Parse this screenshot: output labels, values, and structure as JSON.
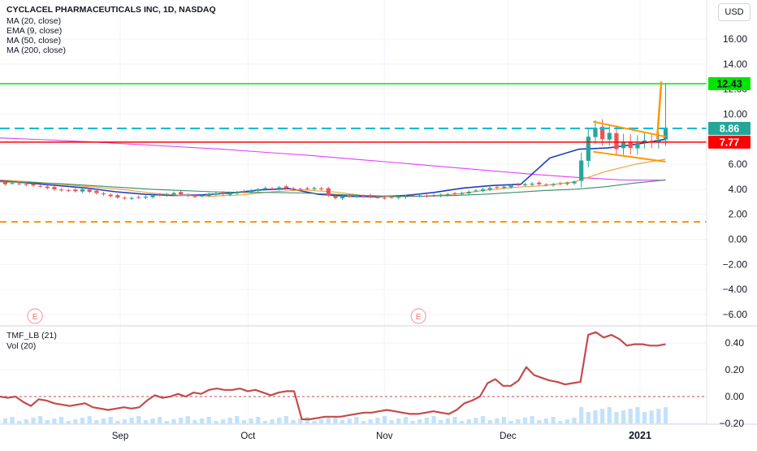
{
  "header": {
    "title": "CYCLACEL PHARMACEUTICALS INC, 1D, NASDAQ",
    "indicators": [
      "MA (20, close)",
      "EMA (9, close)",
      "MA (50, close)",
      "MA (200, close)"
    ],
    "currency_button": "USD"
  },
  "price_axis": {
    "ticks": [
      16,
      14,
      12,
      10,
      8,
      6,
      4,
      2,
      0,
      -2,
      -4,
      -6
    ],
    "tick_labels": [
      "16.00",
      "14.00",
      "12.00",
      "10.00",
      "8.00",
      "6.00",
      "4.00",
      "2.00",
      "0.00",
      "−2.00",
      "−4.00",
      "−6.00"
    ]
  },
  "price_tags": [
    {
      "value": 12.43,
      "label": "12.43",
      "color": "#00e600",
      "text_color": "#131722"
    },
    {
      "value": 8.86,
      "label": "8.86",
      "color": "#26a69a",
      "text_color": "#ffffff"
    },
    {
      "value": 7.77,
      "label": "7.77",
      "color": "#ff0000",
      "text_color": "#ffffff"
    }
  ],
  "earnings_markers": [
    {
      "label": "E",
      "date": "2020-08-12"
    },
    {
      "label": "E",
      "date": "2020-11-10"
    }
  ],
  "time_axis": {
    "labels": [
      "Sep",
      "Oct",
      "Nov",
      "Dec",
      "2021"
    ]
  },
  "sub_pane": {
    "title": "TMF_LB (21)",
    "volume_title": "Vol (20)",
    "ticks": [
      0.4,
      0.2,
      0.0,
      -0.2
    ],
    "tick_labels": [
      "0.40",
      "0.20",
      "0.00",
      "−0.20"
    ]
  },
  "chart_data": [
    {
      "type": "candlestick",
      "title": "CYCLACEL PHARMACEUTICALS INC, 1D, NASDAQ",
      "ylim": [
        -7,
        18
      ],
      "x_start": "2020-07-27",
      "x_end": "2021-01-08",
      "close": [
        4.8,
        4.75,
        4.85,
        4.7,
        4.6,
        4.4,
        4.5,
        4.45,
        4.35,
        4.3,
        4.25,
        4.1,
        4.0,
        3.95,
        3.9,
        3.85,
        4.0,
        3.8,
        3.7,
        3.6,
        3.45,
        3.35,
        3.3,
        3.3,
        3.35,
        3.4,
        3.5,
        3.55,
        3.6,
        3.7,
        3.6,
        3.5,
        3.4,
        3.5,
        3.6,
        3.65,
        3.6,
        3.7,
        3.75,
        3.8,
        3.9,
        4.0,
        4.1,
        4.05,
        4.15,
        4.1,
        4.05,
        4.0,
        4.05,
        4.1,
        4.0,
        3.5,
        3.3,
        3.4,
        3.45,
        3.5,
        3.45,
        3.4,
        3.35,
        3.3,
        3.35,
        3.4,
        3.45,
        3.5,
        3.5,
        3.45,
        3.5,
        3.55,
        3.6,
        3.65,
        3.7,
        3.8,
        3.9,
        4.0,
        4.1,
        4.15,
        4.2,
        4.3,
        4.35,
        4.4,
        4.45,
        4.4,
        4.35,
        4.4,
        4.45,
        4.5,
        4.6,
        6.3,
        8.2,
        8.9,
        8.0,
        8.5,
        7.2,
        7.8,
        7.3,
        7.7,
        7.9,
        7.8,
        7.9,
        8.86
      ],
      "breakout_high": 12.43,
      "horizontal_lines": [
        {
          "value": 12.43,
          "color": "#00e600",
          "style": "solid"
        },
        {
          "value": 8.86,
          "color": "#00bcd4",
          "style": "dashed"
        },
        {
          "value": 7.77,
          "color": "#ff0000",
          "style": "solid"
        },
        {
          "value": 1.4,
          "color": "#ff9800",
          "style": "dashed"
        }
      ],
      "series": [
        {
          "indicator": "MA 200",
          "color": "#e040fb",
          "values": [
            8.1,
            7.95,
            7.8,
            7.6,
            7.4,
            7.2,
            6.95,
            6.7,
            6.4,
            6.1,
            5.8,
            5.5,
            5.2,
            4.95,
            4.75,
            4.72
          ]
        },
        {
          "indicator": "EMA 9",
          "color": "#1f3fbf",
          "values": [
            4.7,
            4.5,
            4.3,
            4.1,
            3.8,
            3.6,
            3.5,
            3.55,
            3.7,
            3.95,
            4.05,
            3.6,
            3.45,
            3.4,
            3.5,
            3.75,
            4.1,
            4.3,
            4.4,
            6.5,
            7.2,
            7.3,
            7.6,
            8.0
          ]
        },
        {
          "indicator": "MA 20",
          "color": "#f59a34",
          "values": [
            4.75,
            4.6,
            4.4,
            4.2,
            4.0,
            3.7,
            3.5,
            3.45,
            3.55,
            3.8,
            3.95,
            3.8,
            3.5,
            3.4,
            3.45,
            3.6,
            3.9,
            4.15,
            4.3,
            4.6,
            5.4,
            6.0,
            6.4
          ]
        },
        {
          "indicator": "MA 50",
          "color": "#388e6c",
          "values": [
            4.6,
            4.55,
            4.45,
            4.3,
            4.15,
            4.0,
            3.9,
            3.8,
            3.75,
            3.75,
            3.7,
            3.6,
            3.5,
            3.45,
            3.45,
            3.5,
            3.6,
            3.75,
            3.9,
            4.0,
            4.2,
            4.5,
            4.75
          ]
        }
      ],
      "pattern": {
        "type": "pennant",
        "color": "#ff9800",
        "upper": [
          [
            "2020-12-21",
            9.4
          ],
          [
            "2021-01-07",
            8.2
          ]
        ],
        "lower": [
          [
            "2020-12-21",
            7.0
          ],
          [
            "2021-01-07",
            6.2
          ]
        ],
        "breakout": [
          [
            "2021-01-05",
            8.0
          ],
          [
            "2021-01-06",
            12.6
          ]
        ]
      }
    },
    {
      "type": "line",
      "title": "TMF_LB (21)",
      "ylim": [
        -0.2,
        0.5
      ],
      "x_start": "2020-07-27",
      "x_end": "2021-01-08",
      "series": [
        {
          "color": "#c44b4b",
          "values": [
            0.0,
            -0.01,
            0.0,
            -0.04,
            -0.07,
            -0.02,
            -0.03,
            -0.05,
            -0.06,
            -0.07,
            -0.06,
            -0.05,
            -0.08,
            -0.09,
            -0.1,
            -0.09,
            -0.08,
            -0.09,
            -0.08,
            -0.03,
            0.01,
            -0.01,
            0.0,
            0.02,
            0.0,
            0.03,
            0.02,
            0.05,
            0.06,
            0.05,
            0.05,
            0.06,
            0.04,
            0.05,
            0.03,
            0.01,
            0.03,
            0.04,
            0.04,
            -0.17,
            -0.17,
            -0.16,
            -0.15,
            -0.15,
            -0.15,
            -0.14,
            -0.13,
            -0.12,
            -0.12,
            -0.11,
            -0.1,
            -0.11,
            -0.12,
            -0.13,
            -0.13,
            -0.12,
            -0.11,
            -0.12,
            -0.13,
            -0.1,
            -0.05,
            -0.03,
            0.0,
            0.1,
            0.13,
            0.08,
            0.08,
            0.12,
            0.22,
            0.16,
            0.14,
            0.12,
            0.11,
            0.09,
            0.1,
            0.11,
            0.46,
            0.48,
            0.44,
            0.46,
            0.43,
            0.38,
            0.39,
            0.39,
            0.38,
            0.38,
            0.39
          ]
        }
      ],
      "zero_line": 0.0
    }
  ],
  "colors": {
    "up": "#26a69a",
    "down": "#ef5350",
    "grid": "#f0f3fa",
    "axis_text": "#131722",
    "volume": "#90caf9"
  }
}
